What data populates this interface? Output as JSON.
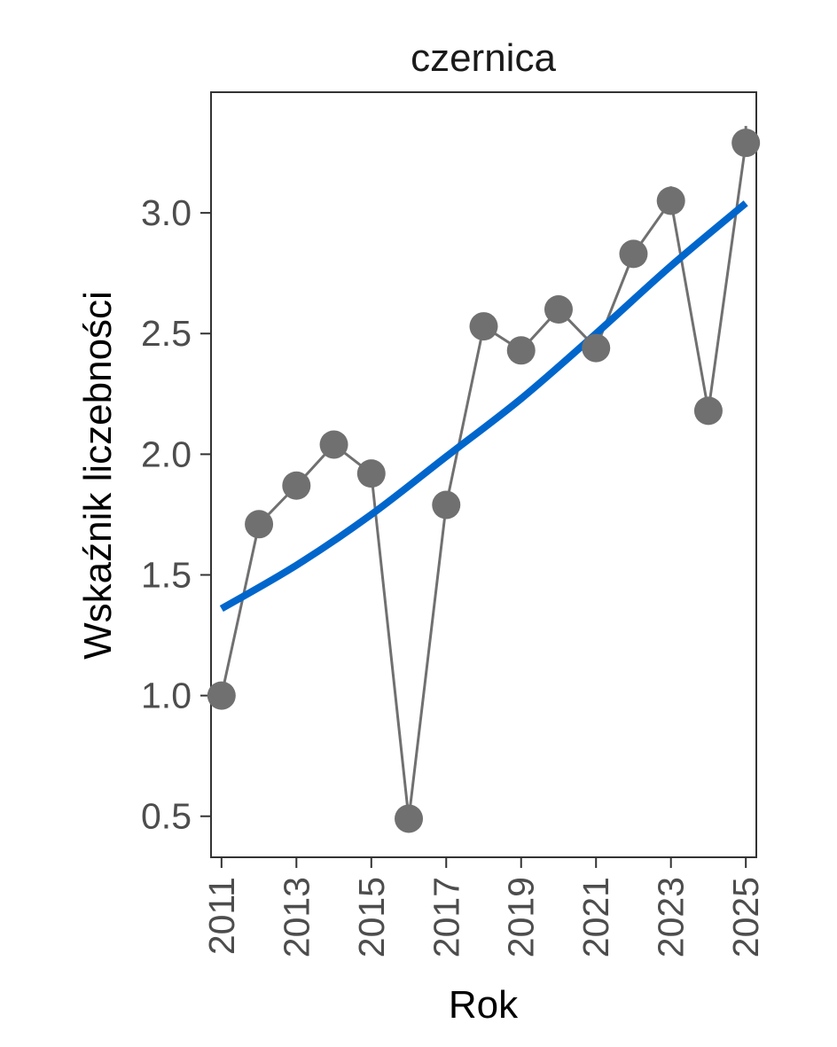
{
  "chart_data": {
    "type": "line",
    "title": "czernica",
    "xlabel": "Rok",
    "ylabel": "Wskaźnik liczebności",
    "xlim": [
      2010.72,
      2025.28
    ],
    "ylim": [
      0.33,
      3.5
    ],
    "x_ticks": [
      "2011",
      "2013",
      "2015",
      "2017",
      "2019",
      "2021",
      "2023",
      "2025"
    ],
    "y_ticks": [
      "0.5",
      "1.0",
      "1.5",
      "2.0",
      "2.5",
      "3.0"
    ],
    "grid": false,
    "legend": "none",
    "series": [
      {
        "kind": "points-line",
        "color": "#707070",
        "x": [
          2011,
          2012,
          2013,
          2014,
          2015,
          2016,
          2017,
          2018,
          2019,
          2020,
          2021,
          2022,
          2023,
          2024,
          2025
        ],
        "y": [
          1.0,
          1.71,
          1.87,
          2.04,
          1.92,
          0.49,
          1.79,
          2.53,
          2.43,
          2.6,
          2.44,
          2.83,
          3.05,
          2.18,
          3.29
        ],
        "error_upper": [
          1.0,
          1.71,
          1.87,
          2.04,
          1.92,
          0.49,
          1.79,
          2.53,
          2.43,
          2.6,
          2.44,
          2.83,
          3.11,
          2.18,
          3.36
        ]
      },
      {
        "kind": "trend",
        "color": "#0066cc",
        "x": [
          2011,
          2013,
          2015,
          2017,
          2019,
          2021,
          2023,
          2025
        ],
        "y": [
          1.36,
          1.54,
          1.75,
          1.99,
          2.23,
          2.5,
          2.78,
          3.04
        ]
      }
    ]
  }
}
